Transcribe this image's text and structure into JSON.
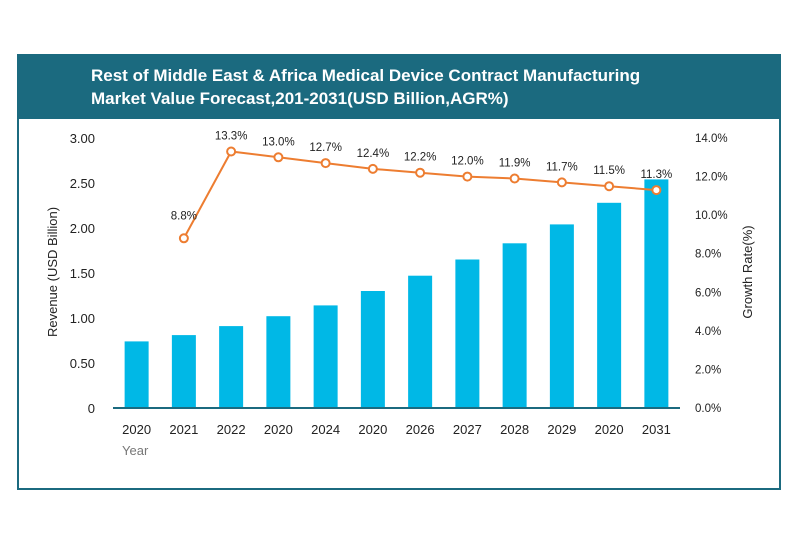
{
  "header": {
    "title_line1": "Rest of Middle East & Africa Medical Device Contract Manufacturing",
    "title_line2": "Market Value Forecast,201-2031(USD Billion,AGR%)"
  },
  "colors": {
    "header_bg": "#1b6a7f",
    "bar": "#00b8e6",
    "line": "#ed7d31",
    "axis": "#1b6a7f"
  },
  "chart_data": {
    "type": "bar",
    "title": "Rest of Middle East & Africa Medical Device Contract Manufacturing Market Value Forecast,201-2031(USD Billion,AGR%)",
    "categories": [
      "2020",
      "2021",
      "2022",
      "2020",
      "2024",
      "2020",
      "2026",
      "2027",
      "2028",
      "2029",
      "2020",
      "2031"
    ],
    "xlabel": "Year",
    "ylabel": "Revenue (USD Billion)",
    "y2label": "Growth Rate(%)",
    "ylim": [
      0,
      3.0
    ],
    "y2lim": [
      0,
      14
    ],
    "yticks": [
      "0",
      "0.50",
      "1.00",
      "1.50",
      "2.00",
      "2.50",
      "3.00"
    ],
    "y2ticks": [
      "0.0%",
      "2.0%",
      "4.0%",
      "6.0%",
      "8.0%",
      "10.0%",
      "12.0%",
      "14.0%"
    ],
    "series": [
      {
        "type": "bar",
        "values": [
          0.74,
          0.81,
          0.91,
          1.02,
          1.14,
          1.3,
          1.47,
          1.65,
          1.83,
          2.04,
          2.28,
          2.54
        ]
      },
      {
        "type": "line",
        "axis": "secondary",
        "values": [
          null,
          8.8,
          13.3,
          13.0,
          12.7,
          12.4,
          12.2,
          12.0,
          11.9,
          11.7,
          11.5,
          11.3
        ],
        "labels": [
          "",
          "8.8%",
          "13.3%",
          "13.0%",
          "12.7%",
          "12.4%",
          "12.2%",
          "12.0%",
          "11.9%",
          "11.7%",
          "11.5%",
          "11.3%"
        ]
      }
    ],
    "grid": false,
    "legend": "none"
  }
}
